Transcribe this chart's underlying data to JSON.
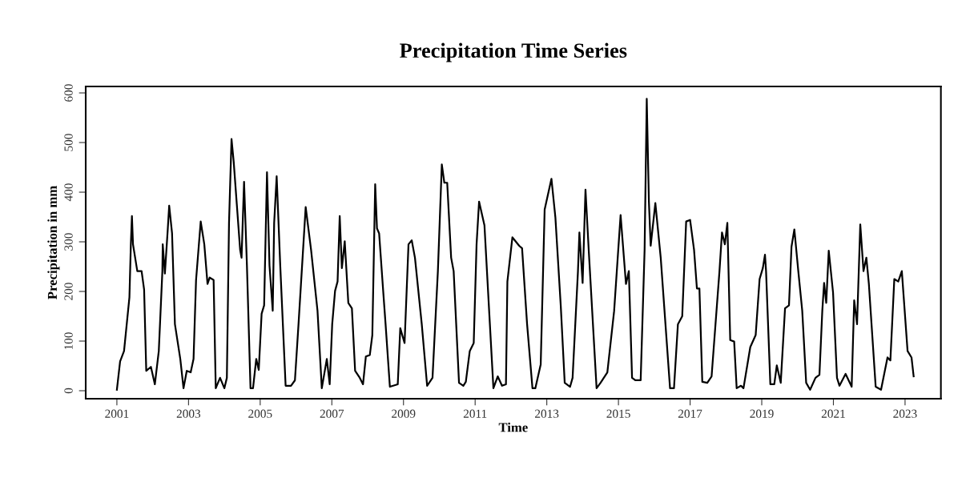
{
  "chart_data": {
    "type": "line",
    "title": "Precipitation Time Series",
    "xlabel": "Time",
    "ylabel": "Precipitation in mm",
    "xlim": [
      2000.13,
      2024.0
    ],
    "xticks": [
      2001,
      2003,
      2005,
      2007,
      2009,
      2011,
      2013,
      2015,
      2017,
      2019,
      2021,
      2023
    ],
    "ylim": [
      -16,
      613
    ],
    "yticks": [
      0,
      100,
      200,
      300,
      400,
      500,
      600
    ],
    "grid": false,
    "marker": "none",
    "line_style": "solid",
    "series": [
      {
        "color": "#000000",
        "x": [
          2001.0,
          2001.09,
          2001.2,
          2001.35,
          2001.39,
          2001.42,
          2001.45,
          2001.57,
          2001.69,
          2001.76,
          2001.82,
          2001.95,
          2002.06,
          2002.17,
          2002.27,
          2002.28,
          2002.34,
          2002.42,
          2002.46,
          2002.54,
          2002.62,
          2002.77,
          2002.86,
          2002.95,
          2003.06,
          2003.14,
          2003.21,
          2003.34,
          2003.44,
          2003.53,
          2003.59,
          2003.7,
          2003.76,
          2003.88,
          2004.0,
          2004.07,
          2004.13,
          2004.2,
          2004.26,
          2004.44,
          2004.48,
          2004.55,
          2004.63,
          2004.73,
          2004.8,
          2004.89,
          2004.96,
          2005.04,
          2005.11,
          2005.19,
          2005.26,
          2005.35,
          2005.39,
          2005.46,
          2005.56,
          2005.71,
          2005.86,
          2005.97,
          2006.07,
          2006.27,
          2006.42,
          2006.6,
          2006.72,
          2006.86,
          2006.94,
          2007.01,
          2007.09,
          2007.16,
          2007.22,
          2007.28,
          2007.36,
          2007.46,
          2007.56,
          2007.65,
          2007.78,
          2007.87,
          2007.95,
          2008.06,
          2008.13,
          2008.21,
          2008.26,
          2008.32,
          2008.43,
          2008.5,
          2008.62,
          2008.84,
          2008.91,
          2009.03,
          2009.14,
          2009.23,
          2009.32,
          2009.51,
          2009.66,
          2009.81,
          2009.96,
          2010.07,
          2010.14,
          2010.22,
          2010.33,
          2010.4,
          2010.55,
          2010.67,
          2010.74,
          2010.85,
          2010.96,
          2011.04,
          2011.11,
          2011.26,
          2011.37,
          2011.51,
          2011.63,
          2011.75,
          2011.86,
          2011.9,
          2012.04,
          2012.23,
          2012.31,
          2012.45,
          2012.6,
          2012.68,
          2012.83,
          2012.94,
          2013.13,
          2013.24,
          2013.39,
          2013.5,
          2013.65,
          2013.72,
          2013.87,
          2013.91,
          2014.0,
          2014.08,
          2014.17,
          2014.39,
          2014.5,
          2014.69,
          2014.88,
          2015.06,
          2015.21,
          2015.29,
          2015.38,
          2015.47,
          2015.62,
          2015.73,
          2015.79,
          2015.85,
          2015.9,
          2016.03,
          2016.18,
          2016.44,
          2016.55,
          2016.66,
          2016.78,
          2016.89,
          2017.0,
          2017.11,
          2017.19,
          2017.26,
          2017.34,
          2017.48,
          2017.6,
          2017.82,
          2017.89,
          2017.97,
          2018.04,
          2018.12,
          2018.23,
          2018.3,
          2018.42,
          2018.49,
          2018.68,
          2018.83,
          2018.94,
          2019.03,
          2019.09,
          2019.12,
          2019.24,
          2019.35,
          2019.42,
          2019.53,
          2019.65,
          2019.76,
          2019.83,
          2019.91,
          2020.02,
          2020.13,
          2020.24,
          2020.35,
          2020.5,
          2020.61,
          2020.69,
          2020.74,
          2020.8,
          2020.87,
          2020.99,
          2021.1,
          2021.17,
          2021.34,
          2021.51,
          2021.58,
          2021.66,
          2021.75,
          2021.84,
          2021.92,
          2021.99,
          2022.18,
          2022.33,
          2022.51,
          2022.59,
          2022.7,
          2022.81,
          2022.91,
          2023.07,
          2023.18,
          2023.24
        ],
        "values": [
          2,
          59,
          80,
          188,
          295,
          352,
          295,
          241,
          241,
          204,
          40,
          48,
          13,
          80,
          241,
          295,
          236,
          325,
          373,
          317,
          134,
          64,
          5,
          40,
          37,
          64,
          223,
          341,
          295,
          215,
          228,
          223,
          5,
          26,
          5,
          26,
          338,
          507,
          462,
          284,
          268,
          421,
          252,
          5,
          5,
          64,
          42,
          155,
          172,
          440,
          252,
          161,
          338,
          432,
          252,
          10,
          10,
          21,
          134,
          370,
          284,
          161,
          5,
          64,
          13,
          134,
          201,
          220,
          352,
          247,
          301,
          177,
          166,
          40,
          26,
          13,
          69,
          72,
          112,
          416,
          327,
          317,
          204,
          134,
          8,
          13,
          126,
          96,
          295,
          303,
          268,
          134,
          10,
          26,
          241,
          456,
          419,
          419,
          268,
          241,
          16,
          10,
          18,
          80,
          96,
          295,
          381,
          333,
          188,
          5,
          29,
          10,
          13,
          220,
          309,
          292,
          287,
          134,
          5,
          5,
          53,
          365,
          427,
          349,
          171,
          16,
          8,
          26,
          241,
          319,
          217,
          405,
          284,
          5,
          16,
          37,
          161,
          354,
          215,
          241,
          26,
          21,
          21,
          284,
          588,
          381,
          292,
          378,
          268,
          5,
          5,
          134,
          150,
          341,
          344,
          284,
          206,
          206,
          18,
          16,
          29,
          241,
          319,
          295,
          338,
          102,
          99,
          5,
          10,
          5,
          88,
          112,
          225,
          247,
          274,
          241,
          13,
          13,
          51,
          16,
          166,
          172,
          290,
          325,
          241,
          161,
          16,
          2,
          26,
          32,
          161,
          217,
          177,
          282,
          198,
          26,
          10,
          34,
          8,
          182,
          134,
          335,
          241,
          268,
          215,
          8,
          2,
          67,
          61,
          225,
          220,
          241,
          80,
          67,
          29
        ]
      }
    ]
  }
}
